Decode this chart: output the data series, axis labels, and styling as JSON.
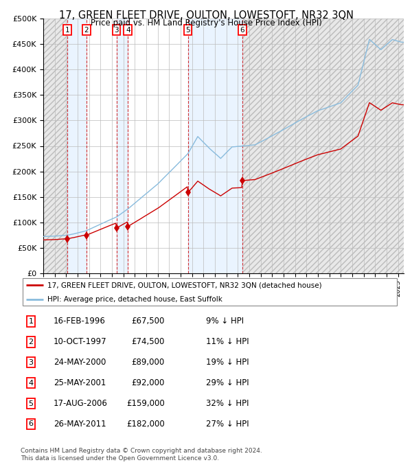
{
  "title": "17, GREEN FLEET DRIVE, OULTON, LOWESTOFT, NR32 3QN",
  "subtitle": "Price paid vs. HM Land Registry's House Price Index (HPI)",
  "ylim": [
    0,
    500000
  ],
  "yticks": [
    0,
    50000,
    100000,
    150000,
    200000,
    250000,
    300000,
    350000,
    400000,
    450000,
    500000
  ],
  "ytick_labels": [
    "£0",
    "£50K",
    "£100K",
    "£150K",
    "£200K",
    "£250K",
    "£300K",
    "£350K",
    "£400K",
    "£450K",
    "£500K"
  ],
  "hpi_color": "#88bbdd",
  "sale_color": "#cc0000",
  "grid_color": "#bbbbbb",
  "vline_color": "#cc0000",
  "shade_color": "#ddeeff",
  "hatch_color": "#dddddd",
  "xlim_start": 1994.0,
  "xlim_end": 2025.5,
  "sale_points": [
    {
      "label": "1",
      "date_idx": 1996.12,
      "price": 67500
    },
    {
      "label": "2",
      "date_idx": 1997.78,
      "price": 74500
    },
    {
      "label": "3",
      "date_idx": 2000.39,
      "price": 89000
    },
    {
      "label": "4",
      "date_idx": 2001.4,
      "price": 92000
    },
    {
      "label": "5",
      "date_idx": 2006.63,
      "price": 159000
    },
    {
      "label": "6",
      "date_idx": 2011.4,
      "price": 182000
    }
  ],
  "hpi_anchors": [
    [
      1994.0,
      72000
    ],
    [
      1996.12,
      74176
    ],
    [
      1997.78,
      83760
    ],
    [
      2000.39,
      110000
    ],
    [
      2001.4,
      126000
    ],
    [
      2004.0,
      175000
    ],
    [
      2006.63,
      234000
    ],
    [
      2007.5,
      268000
    ],
    [
      2008.5,
      245000
    ],
    [
      2009.5,
      225000
    ],
    [
      2010.5,
      248000
    ],
    [
      2011.4,
      249300
    ],
    [
      2012.5,
      252000
    ],
    [
      2014.0,
      270000
    ],
    [
      2016.0,
      295000
    ],
    [
      2018.0,
      320000
    ],
    [
      2020.0,
      335000
    ],
    [
      2021.5,
      370000
    ],
    [
      2022.5,
      460000
    ],
    [
      2023.5,
      440000
    ],
    [
      2024.5,
      460000
    ],
    [
      2025.3,
      455000
    ]
  ],
  "legend_line1": "17, GREEN FLEET DRIVE, OULTON, LOWESTOFT, NR32 3QN (detached house)",
  "legend_line2": "HPI: Average price, detached house, East Suffolk",
  "table_rows": [
    [
      "1",
      "16-FEB-1996",
      "£67,500",
      "9% ↓ HPI"
    ],
    [
      "2",
      "10-OCT-1997",
      "£74,500",
      "11% ↓ HPI"
    ],
    [
      "3",
      "24-MAY-2000",
      "£89,000",
      "19% ↓ HPI"
    ],
    [
      "4",
      "25-MAY-2001",
      "£92,000",
      "29% ↓ HPI"
    ],
    [
      "5",
      "17-AUG-2006",
      "£159,000",
      "32% ↓ HPI"
    ],
    [
      "6",
      "26-MAY-2011",
      "£182,000",
      "27% ↓ HPI"
    ]
  ],
  "footnote1": "Contains HM Land Registry data © Crown copyright and database right 2024.",
  "footnote2": "This data is licensed under the Open Government Licence v3.0."
}
